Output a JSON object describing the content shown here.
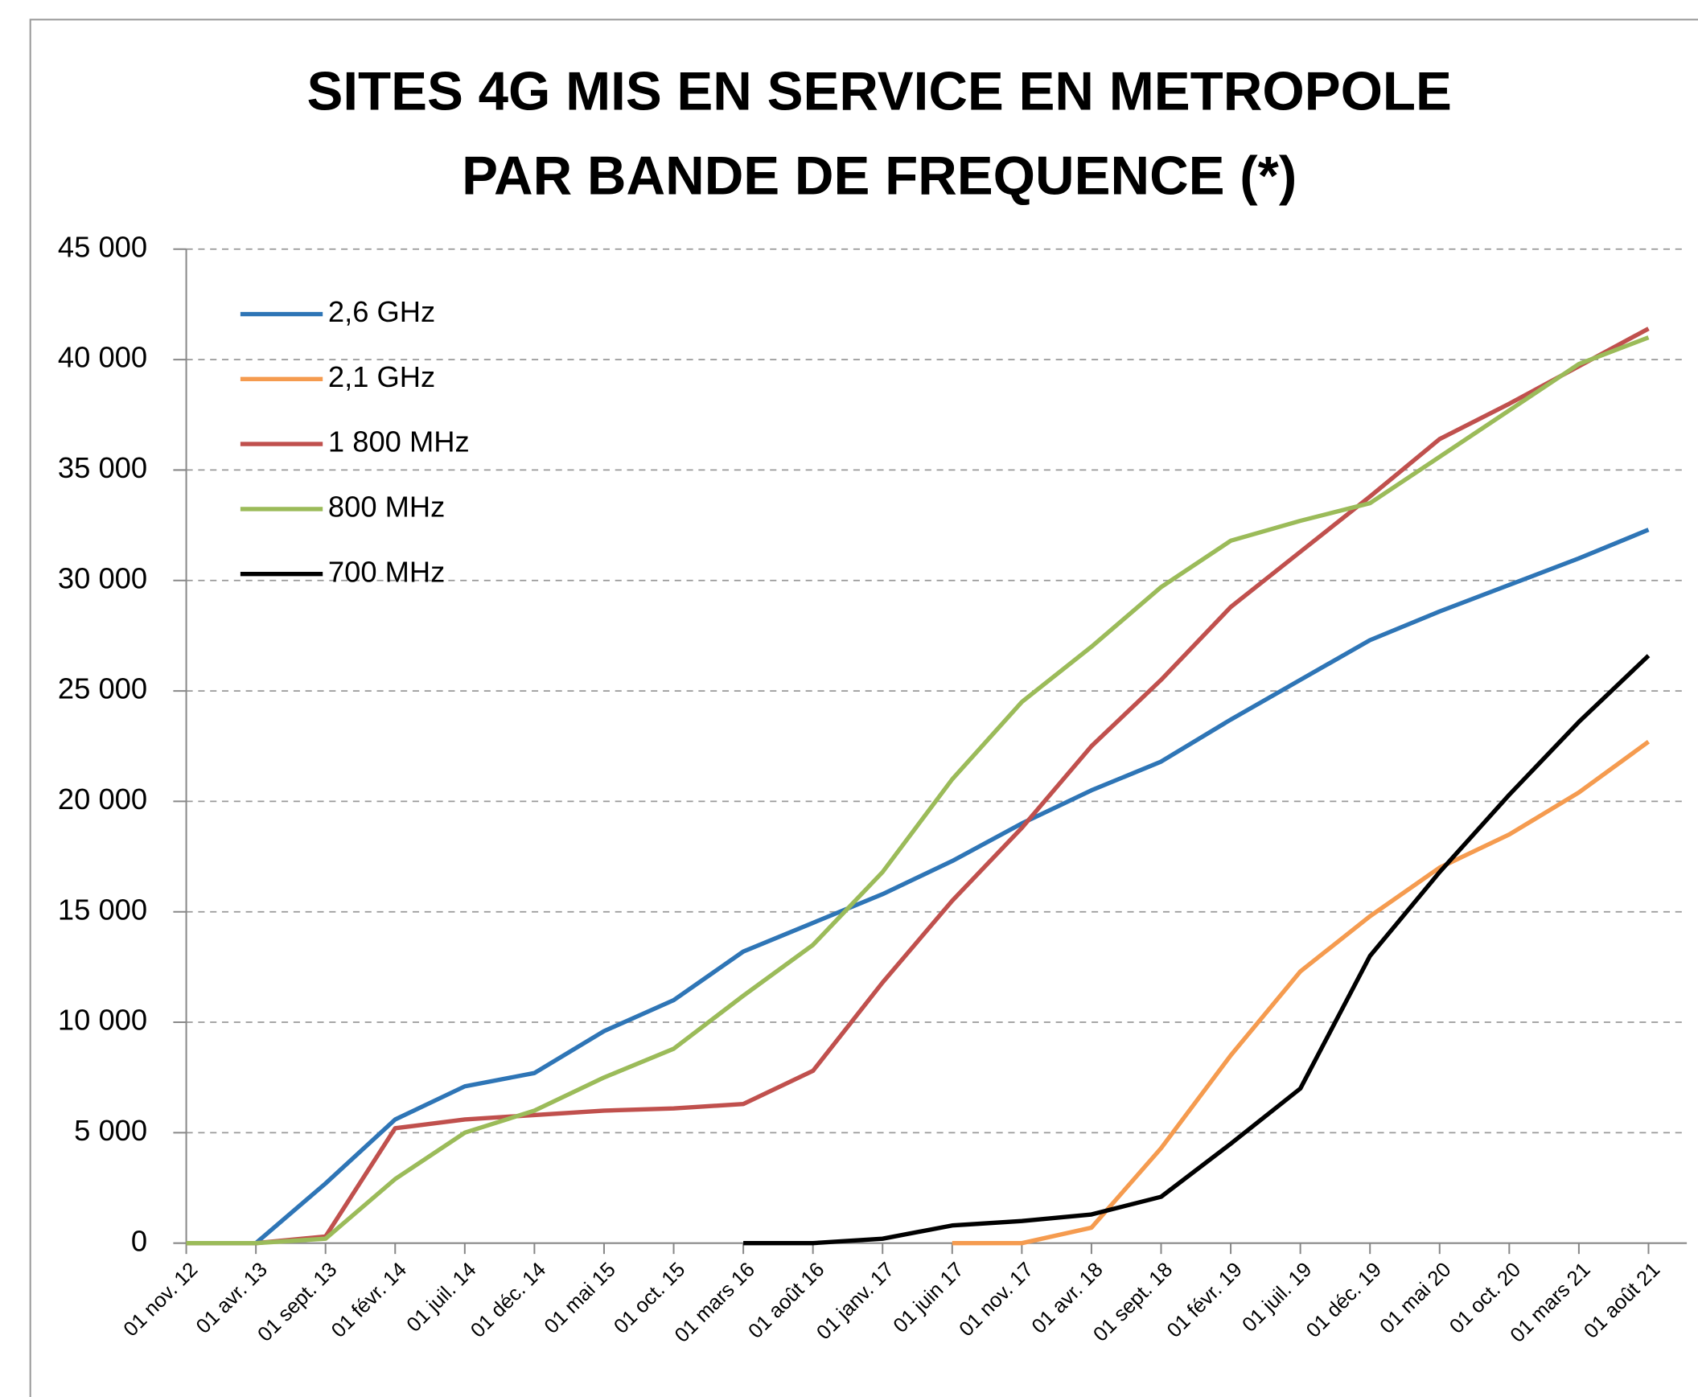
{
  "chart_data": {
    "type": "line",
    "title": [
      "SITES 4G MIS EN SERVICE EN METROPOLE",
      "PAR BANDE DE FREQUENCE (*)"
    ],
    "categories": [
      "01 nov. 12",
      "01 avr. 13",
      "01 sept. 13",
      "01 févr. 14",
      "01 juil. 14",
      "01 déc. 14",
      "01 mai 15",
      "01 oct. 15",
      "01 mars 16",
      "01 août 16",
      "01 janv. 17",
      "01 juin 17",
      "01 nov. 17",
      "01 avr. 18",
      "01 sept. 18",
      "01 févr. 19",
      "01 juil. 19",
      "01 déc. 19",
      "01 mai 20",
      "01 oct. 20",
      "01 mars 21",
      "01 août 21"
    ],
    "series": [
      {
        "name": "2,6 GHz",
        "color": "#2e75b6",
        "values": [
          0,
          0,
          2700,
          5600,
          7100,
          7700,
          9600,
          11000,
          13200,
          14500,
          15800,
          17300,
          19000,
          20500,
          21800,
          23700,
          25500,
          27300,
          28600,
          29800,
          31000,
          32300
        ]
      },
      {
        "name": "2,1 GHz",
        "color": "#f59b4f",
        "values": [
          null,
          null,
          null,
          null,
          null,
          null,
          null,
          null,
          null,
          null,
          null,
          0,
          0,
          700,
          4300,
          8500,
          12300,
          14800,
          17000,
          18500,
          20400,
          22700
        ]
      },
      {
        "name": "1 800 MHz",
        "color": "#c0504d",
        "values": [
          0,
          0,
          300,
          5200,
          5600,
          5800,
          6000,
          6100,
          6300,
          7800,
          11800,
          15500,
          18800,
          22500,
          25500,
          28800,
          31300,
          33800,
          36400,
          38000,
          39700,
          41400
        ]
      },
      {
        "name": "800 MHz",
        "color": "#9bbb59",
        "values": [
          0,
          0,
          200,
          2900,
          5000,
          6000,
          7500,
          8800,
          11200,
          13500,
          16800,
          21000,
          24500,
          27000,
          29700,
          31800,
          32700,
          33500,
          35600,
          37700,
          39800,
          41000
        ]
      },
      {
        "name": "700 MHz",
        "color": "#000000",
        "values": [
          null,
          null,
          null,
          null,
          null,
          null,
          null,
          null,
          0,
          0,
          200,
          800,
          1000,
          1300,
          2100,
          4500,
          7000,
          13000,
          16800,
          20300,
          23600,
          26600
        ]
      }
    ],
    "ylim": [
      0,
      45000
    ],
    "yticks": [
      0,
      {
        "value": 5000,
        "label": "5 000"
      },
      {
        "value": 10000,
        "label": "10 000"
      },
      {
        "value": 15000,
        "label": "15 000"
      },
      {
        "value": 20000,
        "label": "20 000"
      },
      {
        "value": 25000,
        "label": "25 000"
      },
      {
        "value": 30000,
        "label": "30 000"
      },
      {
        "value": 35000,
        "label": "35 000"
      },
      {
        "value": 40000,
        "label": "40 000"
      },
      {
        "value": 45000,
        "label": "45 000"
      }
    ],
    "grid": true,
    "legend": "top-left"
  }
}
